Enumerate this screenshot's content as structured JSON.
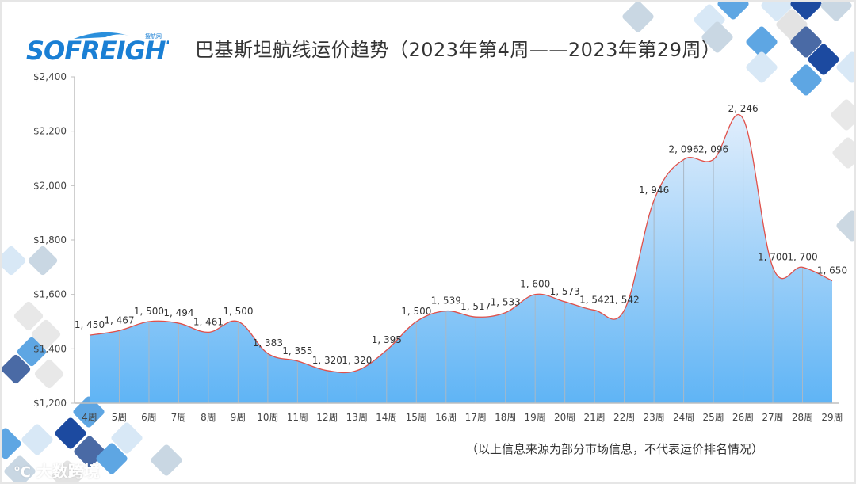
{
  "header": {
    "logo_text": "SOFREIGHT",
    "logo_sub": "搜航网",
    "title": "巴基斯坦航线运价趋势（2023年第4周——2023年第29周）"
  },
  "footer": {
    "note": "（以上信息来源为部分市场信息，不代表运价排名情况）",
    "watermark": "大数跨境"
  },
  "colors": {
    "line": "#e0504a",
    "fill_top": "#dcebfb",
    "fill_bottom": "#5fb4f5",
    "axis": "#bfbfbf",
    "accent_dark": "#1c4aa0",
    "accent_mid": "#4a90d9"
  },
  "chart_data": {
    "type": "area",
    "title": "巴基斯坦航线运价趋势（2023年第4周——2023年第29周）",
    "xlabel": "",
    "ylabel": "",
    "ylim": [
      1200,
      2400
    ],
    "yticks": [
      "$1,200",
      "$1,400",
      "$1,600",
      "$1,800",
      "$2,000",
      "$2,200",
      "$2,400"
    ],
    "categories": [
      "4周",
      "5周",
      "6周",
      "7周",
      "8周",
      "9周",
      "10周",
      "11周",
      "12周",
      "13周",
      "14周",
      "15周",
      "16周",
      "17周",
      "18周",
      "19周",
      "20周",
      "21周",
      "22周",
      "23周",
      "24周",
      "25周",
      "26周",
      "27周",
      "28周",
      "29周"
    ],
    "values": [
      1450,
      1467,
      1500,
      1494,
      1461,
      1500,
      1383,
      1355,
      1320,
      1320,
      1395,
      1500,
      1539,
      1517,
      1533,
      1600,
      1573,
      1542,
      1542,
      1946,
      2096,
      2096,
      2246,
      1700,
      1700,
      1650
    ],
    "data_labels": [
      "1, 450",
      "1, 467",
      "1, 500",
      "1, 494",
      "1, 461",
      "1, 500",
      "1, 383",
      "1, 355",
      "1, 320",
      "1, 320",
      "1, 395",
      "1, 500",
      "1, 539",
      "1, 517",
      "1, 533",
      "1, 600",
      "1, 573",
      "1, 542",
      "1, 542",
      "1, 946",
      "2, 096",
      "2, 096",
      "2, 246",
      "1, 700",
      "1, 700",
      "1, 650"
    ],
    "grid": false,
    "legend": "none",
    "smooth": true
  }
}
